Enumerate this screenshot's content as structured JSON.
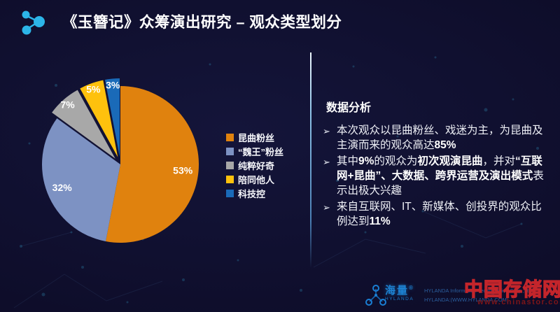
{
  "slide": {
    "title": "《玉簪记》众筹演出研究 – 观众类型划分",
    "background_color": "#0c0b22",
    "accent_cyan": "#2cb5e8"
  },
  "chart_data": {
    "type": "pie",
    "categories": [
      "昆曲粉丝",
      "“魏王”粉丝",
      "纯粹好奇",
      "陪同他人",
      "科技控"
    ],
    "values": [
      53,
      32,
      7,
      5,
      3
    ],
    "value_labels": [
      "53%",
      "32%",
      "7%",
      "5%",
      "3%"
    ],
    "colors": [
      "#e0820e",
      "#7d92c3",
      "#a8a8a8",
      "#fec10d",
      "#1a6ab8"
    ],
    "exploded": [
      false,
      false,
      true,
      true,
      true
    ],
    "start_angle": "12-oclock",
    "direction": "clockwise",
    "legend_position": "right-middle",
    "label_color": "#ffffff"
  },
  "analysis": {
    "heading": "数据分析",
    "bullet_glyph": "➢",
    "bullets": [
      {
        "segments": [
          {
            "text": "本次观众以昆曲粉丝、戏迷为主，为昆曲及主演而来的观众高达",
            "bold": false
          },
          {
            "text": "85%",
            "bold": true
          }
        ]
      },
      {
        "segments": [
          {
            "text": "其中",
            "bold": false
          },
          {
            "text": "9%",
            "bold": true
          },
          {
            "text": "的观众为",
            "bold": false
          },
          {
            "text": "初次观演昆曲",
            "bold": true
          },
          {
            "text": "，并对",
            "bold": false
          },
          {
            "text": "“互联网+昆曲”、大数据、跨界运营及演出模式",
            "bold": true
          },
          {
            "text": "表示出极大兴趣",
            "bold": false
          }
        ]
      },
      {
        "segments": [
          {
            "text": "来自互联网、IT、新媒体、创投界的观众比例达到",
            "bold": false
          },
          {
            "text": "11%",
            "bold": true
          }
        ]
      }
    ]
  },
  "footer": {
    "brand_cn": "海量",
    "brand_reg": "®",
    "brand_en": "HYLANDA",
    "company_line1": "HYLANDA Information Technologies Corp.,Ltd",
    "company_line2": "HYLANDA:(WWW.HYLANDA.COM)"
  },
  "watermark": {
    "text": "中国存储网",
    "url": "www.chinastor.com"
  }
}
